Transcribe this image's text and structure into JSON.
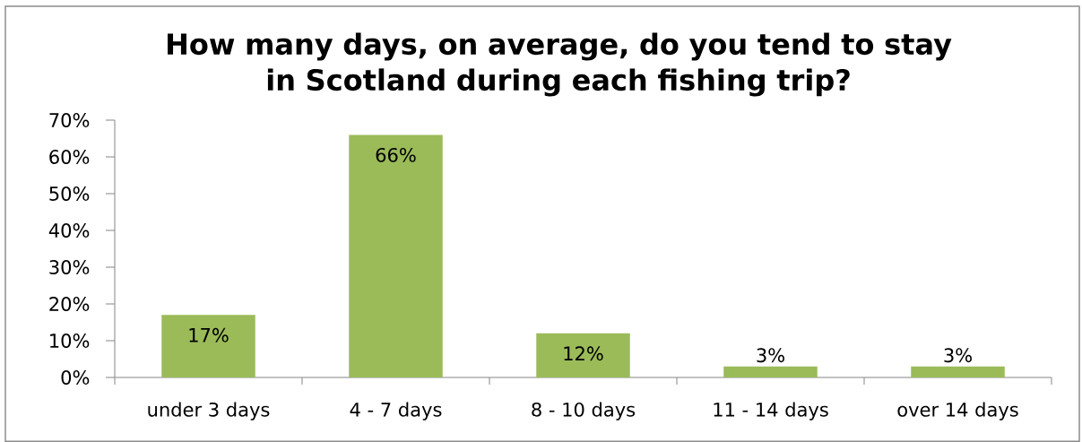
{
  "chart_data": {
    "type": "bar",
    "title": "How many days, on average, do you tend to stay in Scotland during each fishing trip?",
    "categories": [
      "under 3 days",
      "4 - 7 days",
      "8 - 10 days",
      "11 - 14 days",
      "over 14 days"
    ],
    "values": [
      17,
      66,
      12,
      3,
      3
    ],
    "value_labels": [
      "17%",
      "66%",
      "12%",
      "3%",
      "3%"
    ],
    "color": "#9bbb59",
    "ylim": [
      0,
      70
    ],
    "yticks": [
      {
        "value": 0,
        "label": "0%"
      },
      {
        "value": 10,
        "label": "10%"
      },
      {
        "value": 20,
        "label": "20%"
      },
      {
        "value": 30,
        "label": "30%"
      },
      {
        "value": 40,
        "label": "40%"
      },
      {
        "value": 50,
        "label": "50%"
      },
      {
        "value": 60,
        "label": "60%"
      },
      {
        "value": 70,
        "label": "70%"
      }
    ]
  }
}
